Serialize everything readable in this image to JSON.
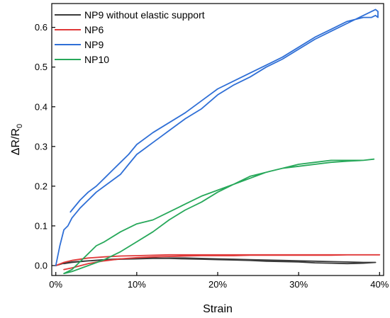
{
  "chart_data": {
    "type": "line",
    "title": "",
    "xlabel": "Strain",
    "ylabel_main": "ΔR/R",
    "ylabel_sub": "0",
    "xlim": [
      -0.005,
      0.405
    ],
    "ylim": [
      -0.025,
      0.66
    ],
    "xticks": [
      0,
      0.1,
      0.2,
      0.3,
      0.4
    ],
    "xtick_labels": [
      "0%",
      "10%",
      "20%",
      "30%",
      "40%"
    ],
    "yticks": [
      0.0,
      0.1,
      0.2,
      0.3,
      0.4,
      0.5,
      0.6
    ],
    "ytick_labels": [
      "0.0",
      "0.1",
      "0.2",
      "0.3",
      "0.4",
      "0.5",
      "0.6"
    ],
    "grid": false,
    "legend_position": "top-left",
    "series": [
      {
        "name": "NP9 without elastic support",
        "color": "#3a3a3a",
        "x": [
          0.0,
          0.01,
          0.02,
          0.04,
          0.06,
          0.08,
          0.1,
          0.12,
          0.14,
          0.16,
          0.18,
          0.2,
          0.22,
          0.24,
          0.26,
          0.28,
          0.3,
          0.32,
          0.34,
          0.36,
          0.38,
          0.395,
          0.38,
          0.36,
          0.34,
          0.32,
          0.3,
          0.28,
          0.26,
          0.24,
          0.22,
          0.2,
          0.18,
          0.16,
          0.14,
          0.12,
          0.1,
          0.08,
          0.06,
          0.04,
          0.02,
          0.01
        ],
        "y": [
          0.0,
          0.006,
          0.009,
          0.012,
          0.014,
          0.016,
          0.017,
          0.018,
          0.019,
          0.019,
          0.018,
          0.017,
          0.016,
          0.015,
          0.014,
          0.013,
          0.012,
          0.011,
          0.01,
          0.009,
          0.008,
          0.008,
          0.006,
          0.005,
          0.006,
          0.007,
          0.009,
          0.01,
          0.011,
          0.013,
          0.014,
          0.015,
          0.016,
          0.017,
          0.018,
          0.019,
          0.018,
          0.017,
          0.015,
          0.012,
          0.008,
          0.005
        ]
      },
      {
        "name": "NP6",
        "color": "#e03838",
        "x": [
          0.0,
          0.01,
          0.02,
          0.04,
          0.06,
          0.08,
          0.1,
          0.12,
          0.14,
          0.16,
          0.18,
          0.2,
          0.22,
          0.24,
          0.26,
          0.28,
          0.3,
          0.32,
          0.34,
          0.36,
          0.38,
          0.4,
          0.38,
          0.36,
          0.34,
          0.32,
          0.3,
          0.28,
          0.26,
          0.24,
          0.22,
          0.2,
          0.18,
          0.16,
          0.14,
          0.12,
          0.1,
          0.08,
          0.06,
          0.04,
          0.02,
          0.01
        ],
        "y": [
          0.0,
          0.008,
          0.013,
          0.019,
          0.022,
          0.024,
          0.025,
          0.026,
          0.027,
          0.027,
          0.027,
          0.027,
          0.027,
          0.027,
          0.027,
          0.027,
          0.027,
          0.027,
          0.027,
          0.027,
          0.027,
          0.027,
          0.027,
          0.027,
          0.026,
          0.026,
          0.026,
          0.026,
          0.026,
          0.026,
          0.025,
          0.025,
          0.025,
          0.024,
          0.023,
          0.022,
          0.02,
          0.017,
          0.012,
          0.005,
          -0.006,
          -0.01
        ]
      },
      {
        "name": "NP9",
        "color": "#2f6fd6",
        "x": [
          0.0,
          0.005,
          0.01,
          0.015,
          0.02,
          0.03,
          0.04,
          0.05,
          0.06,
          0.07,
          0.08,
          0.09,
          0.1,
          0.11,
          0.12,
          0.13,
          0.14,
          0.15,
          0.16,
          0.18,
          0.2,
          0.22,
          0.24,
          0.26,
          0.28,
          0.3,
          0.32,
          0.34,
          0.36,
          0.38,
          0.395,
          0.398,
          0.398,
          0.395,
          0.39,
          0.38,
          0.36,
          0.34,
          0.32,
          0.3,
          0.28,
          0.26,
          0.24,
          0.22,
          0.2,
          0.18,
          0.16,
          0.14,
          0.12,
          0.1,
          0.09,
          0.08,
          0.07,
          0.06,
          0.05,
          0.04,
          0.03,
          0.02,
          0.018
        ],
        "y": [
          0.0,
          0.05,
          0.09,
          0.1,
          0.12,
          0.145,
          0.165,
          0.185,
          0.2,
          0.215,
          0.23,
          0.255,
          0.28,
          0.295,
          0.31,
          0.325,
          0.34,
          0.355,
          0.37,
          0.395,
          0.43,
          0.455,
          0.475,
          0.5,
          0.52,
          0.545,
          0.57,
          0.59,
          0.61,
          0.63,
          0.645,
          0.64,
          0.625,
          0.63,
          0.625,
          0.625,
          0.615,
          0.595,
          0.575,
          0.55,
          0.525,
          0.505,
          0.485,
          0.465,
          0.445,
          0.415,
          0.385,
          0.36,
          0.335,
          0.305,
          0.28,
          0.26,
          0.24,
          0.22,
          0.2,
          0.185,
          0.165,
          0.14,
          0.135
        ]
      },
      {
        "name": "NP10",
        "color": "#27a85a",
        "x": [
          0.01,
          0.02,
          0.03,
          0.04,
          0.05,
          0.06,
          0.08,
          0.1,
          0.12,
          0.14,
          0.16,
          0.18,
          0.2,
          0.22,
          0.24,
          0.26,
          0.28,
          0.3,
          0.32,
          0.34,
          0.36,
          0.38,
          0.393,
          0.38,
          0.36,
          0.34,
          0.32,
          0.3,
          0.28,
          0.26,
          0.24,
          0.22,
          0.2,
          0.18,
          0.16,
          0.14,
          0.12,
          0.1,
          0.08,
          0.06,
          0.04,
          0.02,
          0.01
        ],
        "y": [
          -0.02,
          -0.01,
          0.01,
          0.03,
          0.05,
          0.06,
          0.085,
          0.105,
          0.115,
          0.135,
          0.155,
          0.175,
          0.19,
          0.205,
          0.225,
          0.235,
          0.245,
          0.255,
          0.26,
          0.265,
          0.265,
          0.265,
          0.268,
          0.265,
          0.263,
          0.26,
          0.255,
          0.25,
          0.245,
          0.235,
          0.22,
          0.205,
          0.185,
          0.16,
          0.14,
          0.115,
          0.085,
          0.06,
          0.035,
          0.015,
          0.0,
          -0.015,
          -0.02
        ]
      }
    ]
  }
}
